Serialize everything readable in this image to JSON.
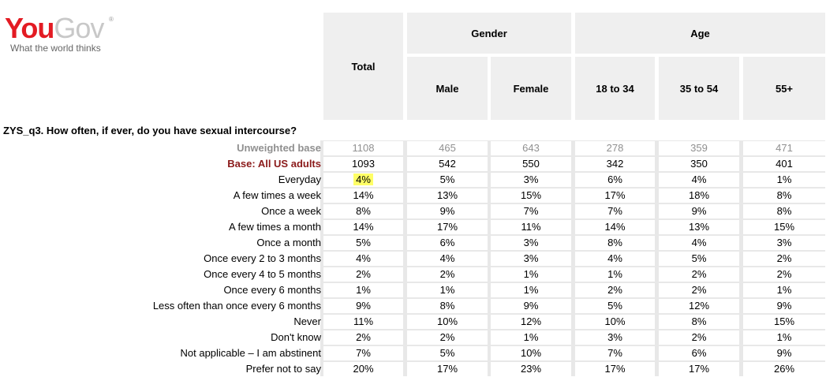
{
  "logo": {
    "you": "You",
    "gov": "Gov",
    "tagline": "What the world thinks"
  },
  "question": "ZYS_q3. How often, if ever, do you have sexual intercourse?",
  "header": {
    "total": "Total",
    "groups": {
      "gender": "Gender",
      "age": "Age"
    },
    "columns": [
      "Male",
      "Female",
      "18 to 34",
      "35 to 54",
      "55+"
    ]
  },
  "rows": [
    {
      "label": "Unweighted base",
      "values": [
        "1108",
        "465",
        "643",
        "278",
        "359",
        "471"
      ]
    },
    {
      "label": "Base: All US adults",
      "values": [
        "1093",
        "542",
        "550",
        "342",
        "350",
        "401"
      ]
    },
    {
      "label": "Everyday",
      "values": [
        "4%",
        "5%",
        "3%",
        "6%",
        "4%",
        "1%"
      ]
    },
    {
      "label": "A few times a week",
      "values": [
        "14%",
        "13%",
        "15%",
        "17%",
        "18%",
        "8%"
      ]
    },
    {
      "label": "Once a week",
      "values": [
        "8%",
        "9%",
        "7%",
        "7%",
        "9%",
        "8%"
      ]
    },
    {
      "label": "A few times a month",
      "values": [
        "14%",
        "17%",
        "11%",
        "14%",
        "13%",
        "15%"
      ]
    },
    {
      "label": "Once a month",
      "values": [
        "5%",
        "6%",
        "3%",
        "8%",
        "4%",
        "3%"
      ]
    },
    {
      "label": "Once every 2 to 3 months",
      "values": [
        "4%",
        "4%",
        "3%",
        "4%",
        "5%",
        "2%"
      ]
    },
    {
      "label": "Once every 4 to 5 months",
      "values": [
        "2%",
        "2%",
        "1%",
        "1%",
        "2%",
        "2%"
      ]
    },
    {
      "label": "Once every 6 months",
      "values": [
        "1%",
        "1%",
        "1%",
        "2%",
        "2%",
        "1%"
      ]
    },
    {
      "label": "Less often than once every 6 months",
      "values": [
        "9%",
        "8%",
        "9%",
        "5%",
        "12%",
        "9%"
      ]
    },
    {
      "label": "Never",
      "values": [
        "11%",
        "10%",
        "12%",
        "10%",
        "8%",
        "15%"
      ]
    },
    {
      "label": "Don't know",
      "values": [
        "2%",
        "2%",
        "1%",
        "3%",
        "2%",
        "1%"
      ]
    },
    {
      "label": "Not applicable – I am abstinent",
      "values": [
        "7%",
        "5%",
        "10%",
        "7%",
        "6%",
        "9%"
      ]
    },
    {
      "label": "Prefer not to say",
      "values": [
        "20%",
        "17%",
        "23%",
        "17%",
        "17%",
        "26%"
      ]
    }
  ],
  "highlight_color": "#ffff66",
  "brand_color": "#e31b23"
}
